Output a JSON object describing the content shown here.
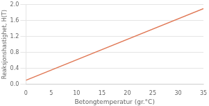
{
  "chart_data": {
    "type": "line",
    "x": [
      0,
      35
    ],
    "values": [
      0.1,
      1.9
    ],
    "color": "#E07855",
    "xlabel": "Betongtemperatur (gr.°C)",
    "ylabel": "Reaksjonshastighet, H(T)",
    "xlim": [
      0,
      35
    ],
    "ylim": [
      0.0,
      2.0
    ],
    "xticks": [
      0,
      5,
      10,
      15,
      20,
      25,
      30,
      35
    ],
    "yticks": [
      {
        "value": 0.0,
        "label": "0.0"
      },
      0.4,
      0.8,
      1.2,
      1.6,
      {
        "value": 2.0,
        "label": "2.0"
      }
    ],
    "grid": "y"
  }
}
